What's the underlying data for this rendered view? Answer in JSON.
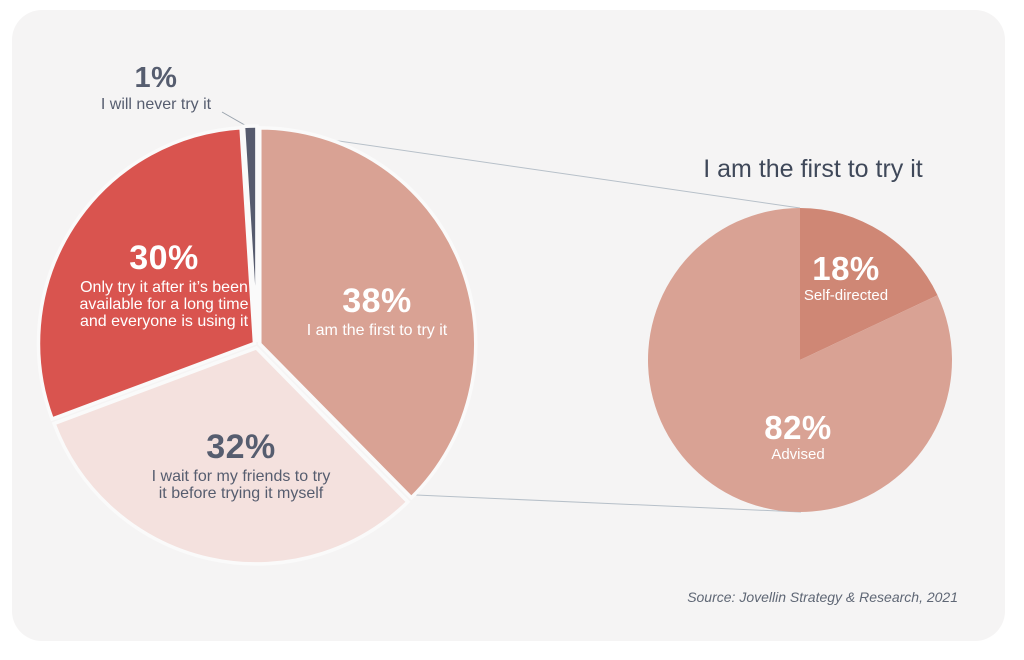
{
  "chart_data": {
    "type": "pie",
    "description": "Technology adoption attitudes: main pie with breakout pie detailing the first-to-try segment",
    "pies": [
      {
        "name": "adoption-attitudes",
        "slices": [
          {
            "pct_label": "38%",
            "value": 38,
            "color": "#d9a294",
            "label_color": "#ffffff",
            "label": "I am the first to try it",
            "label_lines": [
              "I am the first to try it"
            ]
          },
          {
            "pct_label": "32%",
            "value": 32,
            "color": "#f4e1de",
            "label_color": "#565d6f",
            "label": "I wait for my friends to try it before trying it myself",
            "label_lines": [
              "I wait for my friends to try",
              "it before trying it myself"
            ]
          },
          {
            "pct_label": "30%",
            "value": 30,
            "color": "#d9544f",
            "label_color": "#ffffff",
            "label": "Only try it after it’s been available for a long time and everyone is using it",
            "label_lines": [
              "Only try it after it’s been",
              "available for a long time",
              "and everyone is using it"
            ]
          },
          {
            "pct_label": "1%",
            "value": 1,
            "color": "#565b6e",
            "label_color": "#565d6f",
            "label": "I will never try it",
            "label_lines": [
              "I will never try it"
            ]
          }
        ]
      },
      {
        "name": "first-to-try-breakdown",
        "title": "I am the first to try it",
        "slices": [
          {
            "pct_label": "18%",
            "value": 18,
            "color": "#cf8775",
            "label_color": "#ffffff",
            "label": "Self-directed"
          },
          {
            "pct_label": "82%",
            "value": 82,
            "color": "#d9a294",
            "label_color": "#ffffff",
            "label": "Advised"
          }
        ]
      }
    ],
    "legend": "none",
    "source": "Source: Jovellin Strategy & Research, 2021"
  },
  "colors": {
    "panel_background": "#f5f4f4",
    "page_background": "#ffffff",
    "connector_line": "#b7c0c9",
    "callout_line": "#9aa3ad",
    "dark_text": "#565d6f",
    "title_text": "#3f4859",
    "source_text": "#5f6775",
    "slice_gap": "#fafafa"
  }
}
